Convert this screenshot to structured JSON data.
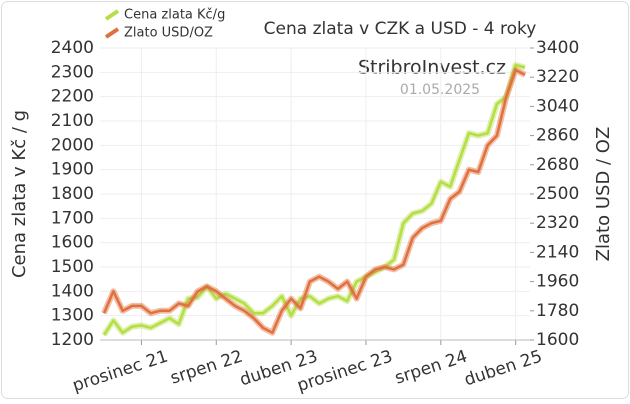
{
  "chart_data": {
    "type": "line",
    "title": "Cena zlata v CZK a USD - 4 roky",
    "annotations": [
      "StribroInvest.cz",
      "01.05.2025"
    ],
    "y_label": "Cena zlata v Kč / g",
    "y2_label": "Zlato USD / OZ",
    "categories": [
      null,
      null,
      null,
      null,
      "prosinec 21",
      null,
      null,
      null,
      null,
      null,
      null,
      null,
      "srpen 22",
      null,
      null,
      null,
      null,
      null,
      null,
      null,
      "duben 23",
      null,
      null,
      null,
      null,
      null,
      null,
      null,
      "prosinec 23",
      null,
      null,
      null,
      null,
      null,
      null,
      null,
      "srpen 24",
      null,
      null,
      null,
      null,
      null,
      null,
      null,
      "duben 25",
      null
    ],
    "series": [
      {
        "name": "Cena zlata Kč/g",
        "color": "#b5de45",
        "values": [
          1220,
          1280,
          1230,
          1255,
          1260,
          1250,
          1270,
          1290,
          1265,
          1370,
          1375,
          1420,
          1370,
          1390,
          1370,
          1350,
          1310,
          1310,
          1340,
          1380,
          1300,
          1370,
          1380,
          1350,
          1370,
          1380,
          1360,
          1440,
          1460,
          1480,
          1500,
          1530,
          1680,
          1720,
          1730,
          1760,
          1850,
          1830,
          1940,
          2050,
          2040,
          2050,
          2170,
          2200,
          2330,
          2320
        ]
      },
      {
        "name": "Zlato USD/OZ",
        "color": "#e0703e",
        "axis": "y2",
        "values": [
          1765,
          1900,
          1780,
          1810,
          1810,
          1765,
          1780,
          1780,
          1825,
          1810,
          1900,
          1930,
          1900,
          1855,
          1810,
          1780,
          1735,
          1675,
          1645,
          1780,
          1855,
          1795,
          1960,
          1990,
          1960,
          1915,
          1960,
          1855,
          1990,
          2035,
          2050,
          2035,
          2065,
          2230,
          2290,
          2320,
          2335,
          2470,
          2515,
          2650,
          2635,
          2800,
          2860,
          3100,
          3265,
          3235
        ]
      }
    ],
    "ylim": [
      1200,
      2400
    ],
    "yticks": [
      1200,
      1300,
      1400,
      1500,
      1600,
      1700,
      1800,
      1900,
      2000,
      2100,
      2200,
      2300,
      2400
    ],
    "y2lim": [
      1600,
      3400
    ],
    "y2ticks": [
      1600,
      1780,
      1960,
      2140,
      2320,
      2500,
      2680,
      2860,
      3040,
      3220,
      3400
    ],
    "grid": true,
    "legend": "top-left"
  }
}
